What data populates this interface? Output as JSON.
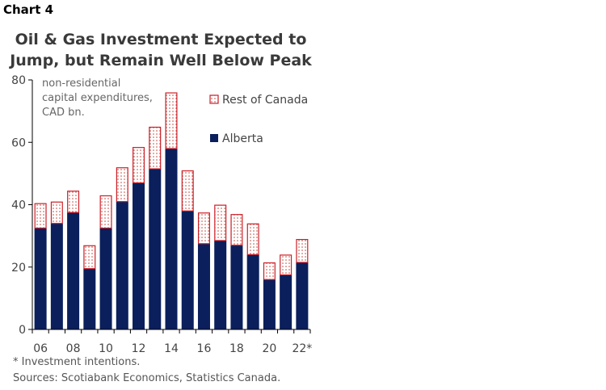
{
  "chart_label": "Chart 4",
  "title_line1": "Oil & Gas Investment Expected to",
  "title_line2": "Jump, but Remain Well Below Peak",
  "footnote": "* Investment intentions.",
  "source": "Sources: Scotiabank Economics, Statistics Canada.",
  "colors": {
    "alberta": "#0a1f5c",
    "rest_border": "#cc1f27",
    "rest_dots": "#c0392b",
    "axis": "#000000",
    "text": "#444444"
  },
  "chart_data": {
    "type": "bar",
    "stacked": true,
    "unit_note": [
      "non-residential",
      "capital expenditures,",
      "CAD bn."
    ],
    "categories": [
      "06",
      "07",
      "08",
      "09",
      "10",
      "11",
      "12",
      "13",
      "14",
      "15",
      "16",
      "17",
      "18",
      "19",
      "20",
      "21",
      "22*"
    ],
    "x_tick_labels": [
      "06",
      "08",
      "10",
      "12",
      "14",
      "16",
      "18",
      "20",
      "22*"
    ],
    "ylim": [
      0,
      80
    ],
    "y_ticks": [
      0,
      20,
      40,
      60,
      80
    ],
    "grid": false,
    "legend_position": "top-right",
    "series": [
      {
        "name": "Alberta",
        "values": [
          32.5,
          34,
          37.5,
          19.5,
          32.5,
          41,
          47,
          51.5,
          58,
          38,
          27.5,
          28.5,
          27,
          24,
          16,
          17.5,
          21.5
        ]
      },
      {
        "name": "Rest of Canada",
        "values": [
          8,
          7,
          7,
          7.5,
          10.5,
          11,
          11.5,
          13.5,
          18,
          13,
          10,
          11.5,
          10,
          10,
          5.5,
          6.5,
          7.5
        ]
      }
    ]
  }
}
